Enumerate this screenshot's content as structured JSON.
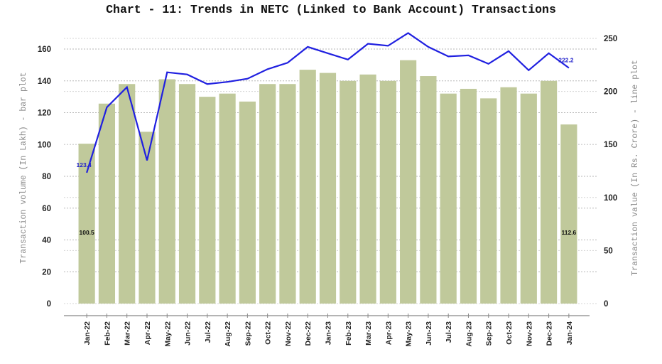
{
  "chart_data": {
    "type": "bar+line",
    "title": "Chart - 11: Trends in NETC (Linked to Bank Account) Transactions",
    "xlabel": "",
    "ylabel": "Transaction volume (In Lakh) - bar plot",
    "y2label": "Transaction value (In Rs. Crore) - line plot",
    "ylim": [
      0,
      160
    ],
    "y2lim": [
      0,
      250
    ],
    "yticks": [
      0,
      20,
      40,
      60,
      80,
      100,
      120,
      140,
      160
    ],
    "y2ticks": [
      0,
      50,
      100,
      150,
      200,
      250
    ],
    "grid": true,
    "categories": [
      "Jan-22",
      "Feb-22",
      "Mar-22",
      "Apr-22",
      "May-22",
      "Jun-22",
      "Jul-22",
      "Aug-22",
      "Sep-22",
      "Oct-22",
      "Nov-22",
      "Dec-22",
      "Jan-23",
      "Feb-23",
      "Mar-23",
      "Apr-23",
      "May-23",
      "Jun-23",
      "Jul-23",
      "Aug-23",
      "Sep-23",
      "Oct-23",
      "Nov-23",
      "Dec-23",
      "Jan-24"
    ],
    "series": [
      {
        "name": "Transaction volume (In Lakh)",
        "type": "bar",
        "axis": "left",
        "color": "#c0c99b",
        "values": [
          100.5,
          125.7,
          138,
          108,
          141,
          138,
          130,
          132,
          127,
          138,
          138,
          147,
          145,
          140,
          144,
          140,
          153,
          143,
          132,
          135,
          129,
          136,
          132,
          140,
          112.6
        ]
      },
      {
        "name": "Transaction value (In Rs. Crore)",
        "type": "line",
        "axis": "right",
        "color": "#2020e0",
        "values": [
          123.4,
          185,
          204,
          135,
          218,
          216,
          207,
          209,
          212,
          221,
          227,
          242,
          236,
          230,
          245,
          243,
          255,
          242,
          233,
          234,
          226,
          238,
          220,
          236,
          222.2
        ]
      }
    ],
    "annotations": [
      {
        "series": "bar",
        "index": 0,
        "text": "100.5"
      },
      {
        "series": "bar",
        "index": 24,
        "text": "112.6"
      },
      {
        "series": "line",
        "index": 0,
        "text": "123.4"
      },
      {
        "series": "line",
        "index": 24,
        "text": "222.2"
      }
    ],
    "legend": null
  }
}
